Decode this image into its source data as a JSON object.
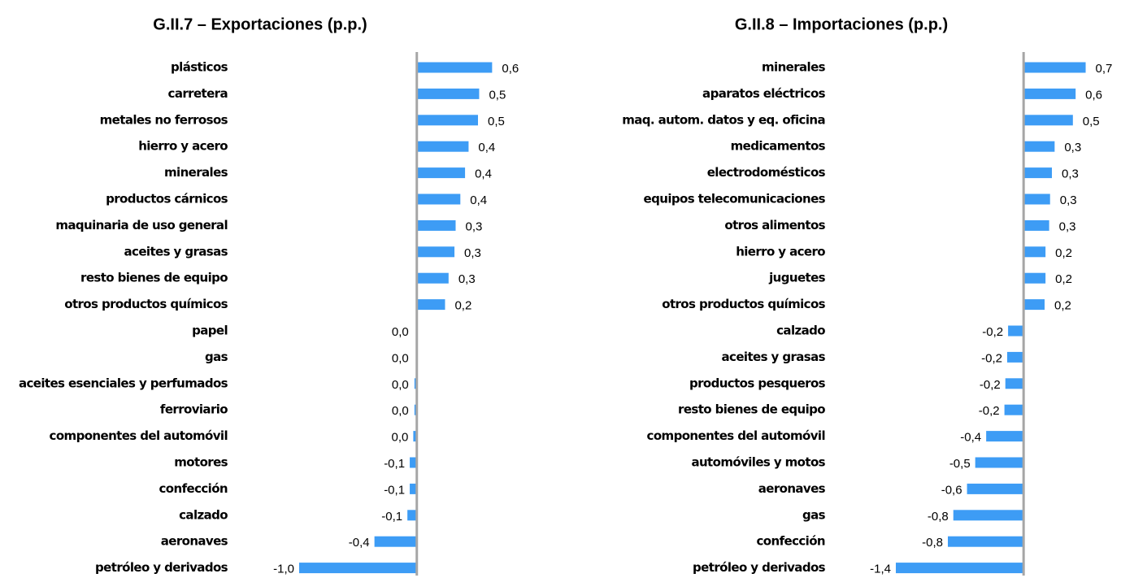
{
  "chart_data": [
    {
      "type": "bar",
      "orientation": "horizontal",
      "title": "G.II.7 – Exportaciones (p.p.)",
      "color": "#3d9cf5",
      "xlim": [
        -1.0,
        0.9
      ],
      "categories": [
        "plásticos",
        "carretera",
        "metales no ferrosos",
        "hierro y acero",
        "minerales",
        "productos cárnicos",
        "maquinaria de uso general",
        "aceites y grasas",
        "resto bienes de equipo",
        "otros productos químicos",
        "papel",
        "gas",
        "aceites esenciales y perfumados",
        "ferroviario",
        "componentes del automóvil",
        "motores",
        "confección",
        "calzado",
        "aeronaves",
        "petróleo y derivados"
      ],
      "values": [
        0.64,
        0.53,
        0.52,
        0.44,
        0.41,
        0.37,
        0.33,
        0.32,
        0.27,
        0.24,
        0.0,
        0.0,
        -0.02,
        -0.02,
        -0.03,
        -0.06,
        -0.06,
        -0.08,
        -0.36,
        -1.0
      ],
      "value_labels": [
        "0,6",
        "0,5",
        "0,5",
        "0,4",
        "0,4",
        "0,4",
        "0,3",
        "0,3",
        "0,3",
        "0,2",
        "0,0",
        "0,0",
        "0,0",
        "0,0",
        "0,0",
        "-0,1",
        "-0,1",
        "-0,1",
        "-0,4",
        "-1,0"
      ]
    },
    {
      "type": "bar",
      "orientation": "horizontal",
      "title": "G.II.8 – Importaciones (p.p.)",
      "color": "#3d9cf5",
      "xlim": [
        -1.4,
        0.8
      ],
      "categories": [
        "minerales",
        "aparatos eléctricos",
        "maq. autom. datos y eq. oficina",
        "medicamentos",
        "electrodomésticos",
        "equipos telecomunicaciones",
        "otros alimentos",
        "hierro y acero",
        "juguetes",
        "otros productos químicos",
        "calzado",
        "aceites y grasas",
        "productos pesqueros",
        "resto bienes de equipo",
        "componentes del automóvil",
        "automóviles y motos",
        "aeronaves",
        "gas",
        "confección",
        "petróleo y derivados"
      ],
      "values": [
        0.68,
        0.57,
        0.54,
        0.34,
        0.31,
        0.29,
        0.28,
        0.24,
        0.24,
        0.23,
        -0.17,
        -0.18,
        -0.2,
        -0.21,
        -0.41,
        -0.53,
        -0.62,
        -0.77,
        -0.83,
        -1.4
      ],
      "value_labels": [
        "0,7",
        "0,6",
        "0,5",
        "0,3",
        "0,3",
        "0,3",
        "0,3",
        "0,2",
        "0,2",
        "0,2",
        "-0,2",
        "-0,2",
        "-0,2",
        "-0,2",
        "-0,4",
        "-0,5",
        "-0,6",
        "-0,8",
        "-0,8",
        "-1,4"
      ]
    }
  ]
}
